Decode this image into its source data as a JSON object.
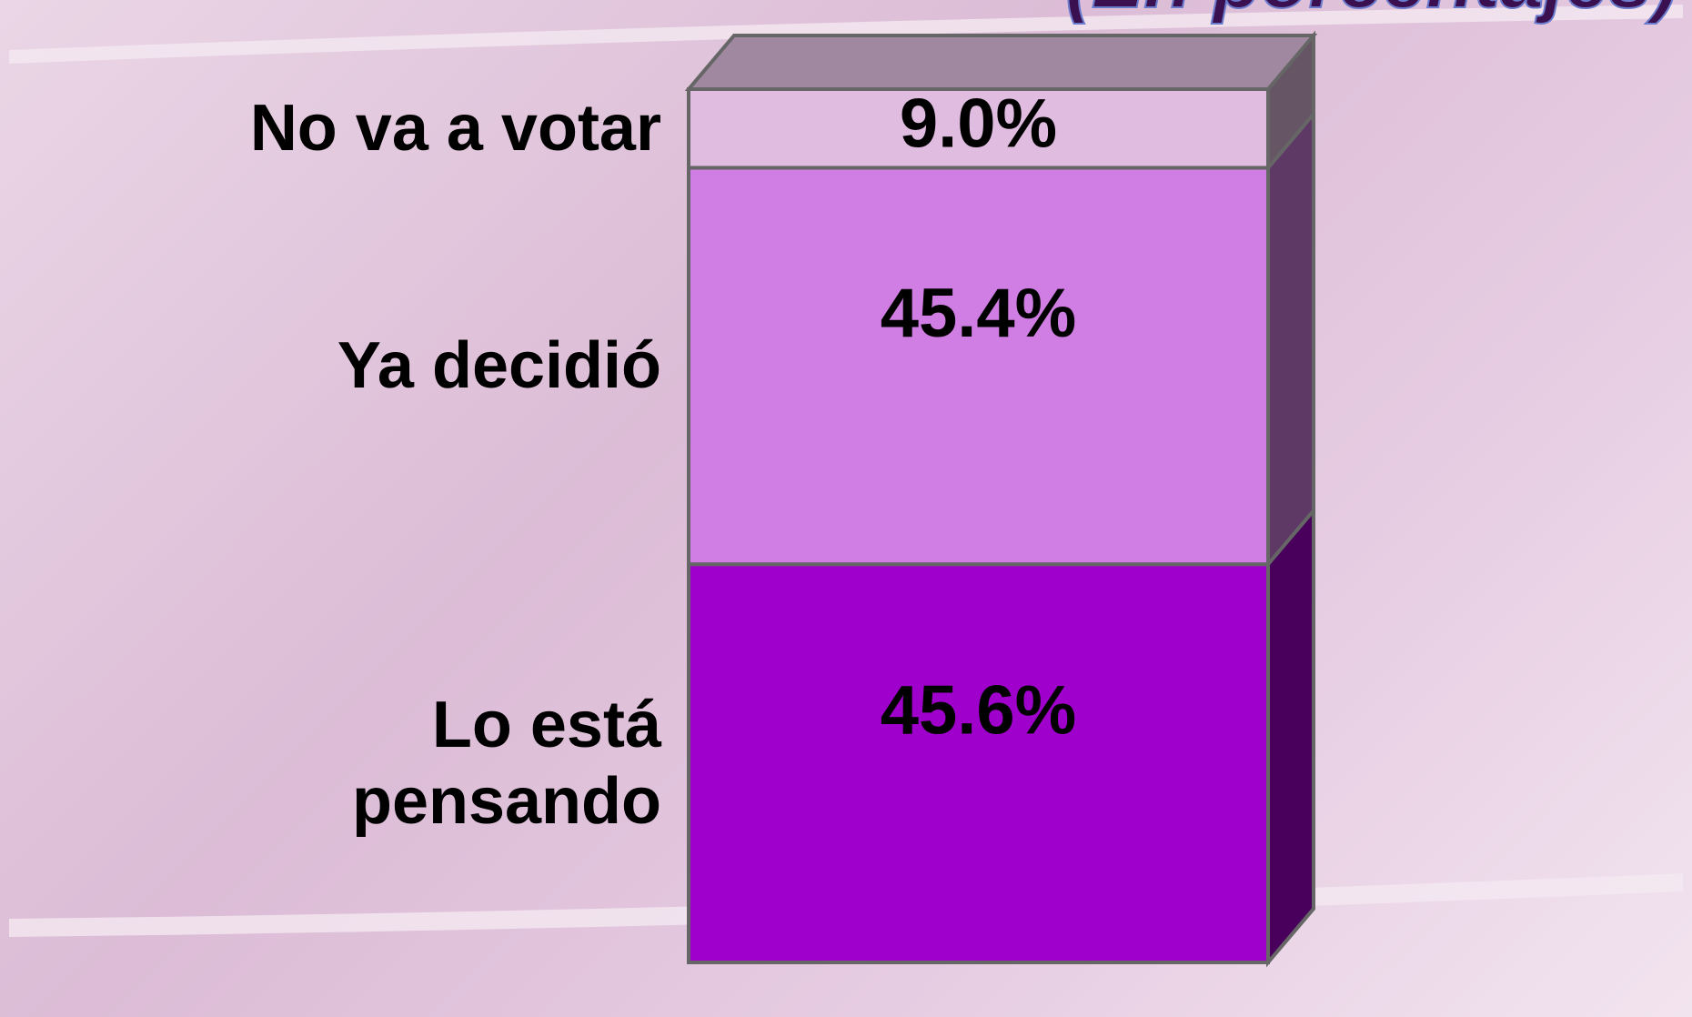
{
  "chart_data": {
    "type": "bar",
    "stacked": true,
    "title": "(En porcentajes)",
    "ylim": [
      0,
      100
    ],
    "series": [
      {
        "name": "Lo está pensando",
        "color": "#a000cc",
        "values": [
          45.6
        ],
        "value_labels": [
          "45.6%"
        ]
      },
      {
        "name": "Ya decidió",
        "color": "#d07ee3",
        "values": [
          45.4
        ],
        "value_labels": [
          "45.4%"
        ]
      },
      {
        "name": "No va a votar",
        "color": "#e0bde0",
        "values": [
          9.0
        ],
        "value_labels": [
          "9.0%"
        ]
      }
    ]
  }
}
